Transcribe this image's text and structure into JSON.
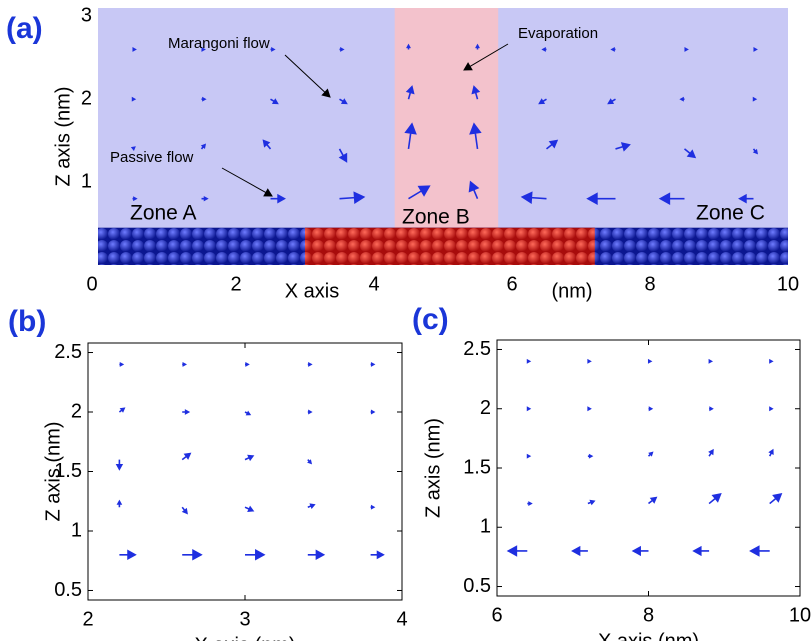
{
  "chart_data": [
    {
      "type": "quiver",
      "panel": "(a)",
      "x_label": "X axis",
      "x_unit": "(nm)",
      "y_label": "Z axis (nm)",
      "xlim": [
        0,
        10
      ],
      "ylim": [
        0,
        3.1
      ],
      "xticks": [
        0,
        2,
        4,
        6,
        8,
        10
      ],
      "yticks": [
        1,
        2,
        3
      ],
      "color": "#1f2fe0",
      "background": "#c8c8f5",
      "highlight": [
        4.3,
        5.8
      ],
      "highlight_color": "#f3c2cc",
      "substrate": {
        "top": 0.45,
        "red": [
          3.0,
          7.2
        ]
      },
      "annotations": [
        "Marangoni flow",
        "Evaporation",
        "Passive flow",
        "Zone A",
        "Zone B",
        "Zone C"
      ],
      "x": [
        0.5,
        1.5,
        2.5,
        3.5,
        4.5,
        5.5,
        6.5,
        7.5,
        8.5,
        9.5,
        0.5,
        1.5,
        2.5,
        3.5,
        4.5,
        5.5,
        6.5,
        7.5,
        8.5,
        9.5,
        0.5,
        1.5,
        2.5,
        3.5,
        4.5,
        5.5,
        6.5,
        7.5,
        8.5,
        9.5,
        0.5,
        1.5,
        2.5,
        3.5,
        4.5,
        5.5,
        6.5,
        7.5,
        8.5,
        9.5
      ],
      "y": [
        0.8,
        0.8,
        0.8,
        0.8,
        0.8,
        0.8,
        0.8,
        0.8,
        0.8,
        0.8,
        1.4,
        1.4,
        1.4,
        1.4,
        1.4,
        1.4,
        1.4,
        1.4,
        1.4,
        1.4,
        2.0,
        2.0,
        2.0,
        2.0,
        2.0,
        2.0,
        2.0,
        2.0,
        2.0,
        2.0,
        2.6,
        2.6,
        2.6,
        2.6,
        2.6,
        2.6,
        2.6,
        2.6,
        2.6,
        2.6
      ],
      "u": [
        0.05,
        0.08,
        0.2,
        0.35,
        0.3,
        -0.1,
        -0.35,
        -0.4,
        -0.35,
        -0.2,
        0.03,
        0.05,
        -0.1,
        0.1,
        0.05,
        -0.05,
        0.15,
        0.2,
        0.15,
        0.05,
        0.03,
        0.05,
        0.1,
        0.1,
        0.05,
        -0.05,
        -0.1,
        -0.1,
        -0.05,
        0.03,
        0.04,
        0.04,
        0.05,
        0.05,
        0,
        0,
        -0.05,
        -0.05,
        0.04,
        0.04
      ],
      "v": [
        0,
        0,
        0,
        0.02,
        0.15,
        0.2,
        0.02,
        0,
        0,
        0,
        0.02,
        0.05,
        0.1,
        -0.15,
        0.3,
        0.3,
        0.1,
        0.05,
        -0.1,
        -0.05,
        0,
        0,
        -0.05,
        -0.05,
        0.15,
        0.15,
        -0.05,
        -0.05,
        0,
        0,
        0,
        0,
        0,
        0,
        0.05,
        0.05,
        0,
        0,
        0,
        0
      ]
    },
    {
      "type": "quiver",
      "panel": "(b)",
      "x_label": "X axis (nm)",
      "y_label": "Z axis (nm)",
      "xlim": [
        2,
        4
      ],
      "ylim": [
        0.42,
        2.58
      ],
      "xticks": [
        2,
        3,
        4
      ],
      "yticks": [
        0.5,
        1,
        1.5,
        2,
        2.5
      ],
      "color": "#1f2fe0",
      "x": [
        2.2,
        2.6,
        3.0,
        3.4,
        3.8,
        2.2,
        2.6,
        3.0,
        3.4,
        3.8,
        2.2,
        2.6,
        3.0,
        3.4,
        3.8,
        2.2,
        2.6,
        3.0,
        3.4,
        3.8,
        2.2,
        2.6,
        3.0,
        3.4,
        3.8
      ],
      "y": [
        0.8,
        0.8,
        0.8,
        0.8,
        0.8,
        1.2,
        1.2,
        1.2,
        1.2,
        1.2,
        1.6,
        1.6,
        1.6,
        1.6,
        1.6,
        2.0,
        2.0,
        2.0,
        2.0,
        2.0,
        2.4,
        2.4,
        2.4,
        2.4,
        2.4
      ],
      "u": [
        0.1,
        0.12,
        0.12,
        0.1,
        0.08,
        0,
        0.03,
        0.05,
        0.04,
        0.02,
        0,
        0.05,
        0.05,
        0.02,
        0,
        0.03,
        0.04,
        0.03,
        0.02,
        0.02,
        0.02,
        0.02,
        0.02,
        0.02,
        0.02
      ],
      "v": [
        0,
        0,
        0,
        0,
        0,
        0.05,
        -0.05,
        -0.03,
        0.02,
        0,
        -0.08,
        0.05,
        0.03,
        -0.03,
        0,
        0.03,
        0,
        -0.02,
        0,
        0,
        0,
        0,
        0,
        0,
        0
      ]
    },
    {
      "type": "quiver",
      "panel": "(c)",
      "x_label": "X axis (nm)",
      "y_label": "Z axis (nm)",
      "xlim": [
        6,
        10
      ],
      "ylim": [
        0.42,
        2.58
      ],
      "xticks": [
        6,
        8,
        10
      ],
      "yticks": [
        0.5,
        1,
        1.5,
        2,
        2.5
      ],
      "color": "#1f2fe0",
      "x": [
        6.4,
        7.2,
        8.0,
        8.8,
        9.6,
        6.4,
        7.2,
        8.0,
        8.8,
        9.6,
        6.4,
        7.2,
        8.0,
        8.8,
        9.6,
        6.4,
        7.2,
        8.0,
        8.8,
        9.6,
        6.4,
        7.2,
        8.0,
        8.8,
        9.6
      ],
      "y": [
        0.8,
        0.8,
        0.8,
        0.8,
        0.8,
        1.2,
        1.2,
        1.2,
        1.2,
        1.2,
        1.6,
        1.6,
        1.6,
        1.6,
        1.6,
        2.0,
        2.0,
        2.0,
        2.0,
        2.0,
        2.4,
        2.4,
        2.4,
        2.4,
        2.4
      ],
      "u": [
        -0.25,
        -0.2,
        -0.2,
        -0.2,
        -0.25,
        0.05,
        0.08,
        0.1,
        0.15,
        0.15,
        0.03,
        0.05,
        0.05,
        0.05,
        0.04,
        0.03,
        0.03,
        0.04,
        0.04,
        0.03,
        0.03,
        0.03,
        0.03,
        0.03,
        0.03
      ],
      "v": [
        0,
        0,
        0,
        0,
        0,
        0,
        0.02,
        0.05,
        0.08,
        0.08,
        0,
        0,
        0.03,
        0.05,
        0.05,
        0,
        0,
        0,
        0,
        0,
        0,
        0,
        0,
        0,
        0
      ]
    }
  ]
}
